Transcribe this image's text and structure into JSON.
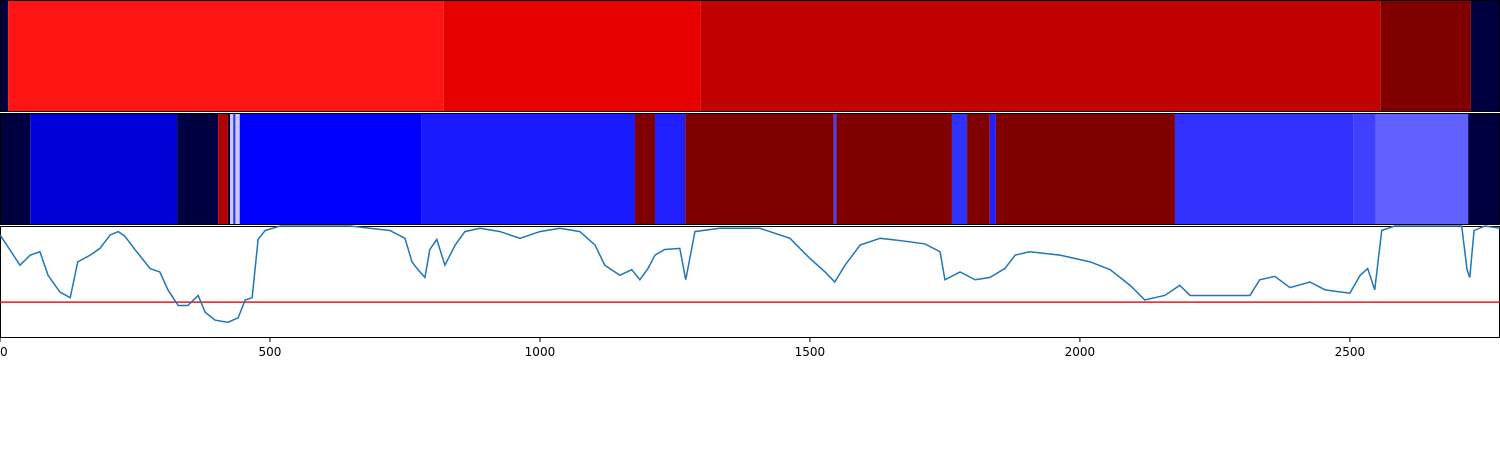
{
  "chart_data": [
    {
      "type": "segments",
      "xlim": [
        0,
        2778
      ],
      "segments": [
        {
          "start": 0,
          "end": 15,
          "color": "#000040"
        },
        {
          "start": 15,
          "end": 822,
          "color": "#ff1414"
        },
        {
          "start": 822,
          "end": 1298,
          "color": "#e60000"
        },
        {
          "start": 1298,
          "end": 2557,
          "color": "#c10000"
        },
        {
          "start": 2557,
          "end": 2724,
          "color": "#800000"
        },
        {
          "start": 2724,
          "end": 2778,
          "color": "#000040"
        }
      ]
    },
    {
      "type": "segments",
      "xlim": [
        0,
        2778
      ],
      "segments": [
        {
          "start": 0,
          "end": 56,
          "color": "#000040"
        },
        {
          "start": 56,
          "end": 328,
          "color": "#0000d8"
        },
        {
          "start": 328,
          "end": 404,
          "color": "#000040"
        },
        {
          "start": 404,
          "end": 422,
          "color": "#b00000"
        },
        {
          "start": 422,
          "end": 426,
          "color": "#000040"
        },
        {
          "start": 426,
          "end": 432,
          "color": "#c8c8ff"
        },
        {
          "start": 432,
          "end": 436,
          "color": "#3030ff"
        },
        {
          "start": 436,
          "end": 444,
          "color": "#c8c8ff"
        },
        {
          "start": 444,
          "end": 781,
          "color": "#0000ff"
        },
        {
          "start": 781,
          "end": 1176,
          "color": "#1a1aff"
        },
        {
          "start": 1176,
          "end": 1213,
          "color": "#800000"
        },
        {
          "start": 1213,
          "end": 1269,
          "color": "#2020ff"
        },
        {
          "start": 1269,
          "end": 1544,
          "color": "#800000"
        },
        {
          "start": 1544,
          "end": 1549,
          "color": "#4040ff"
        },
        {
          "start": 1549,
          "end": 1763,
          "color": "#800000"
        },
        {
          "start": 1763,
          "end": 1791,
          "color": "#3030ff"
        },
        {
          "start": 1791,
          "end": 1833,
          "color": "#800000"
        },
        {
          "start": 1833,
          "end": 1844,
          "color": "#2020ff"
        },
        {
          "start": 1844,
          "end": 2176,
          "color": "#800000"
        },
        {
          "start": 2176,
          "end": 2506,
          "color": "#3030ff"
        },
        {
          "start": 2506,
          "end": 2548,
          "color": "#4040ff"
        },
        {
          "start": 2548,
          "end": 2719,
          "color": "#6060ff"
        },
        {
          "start": 2719,
          "end": 2778,
          "color": "#000040"
        }
      ]
    },
    {
      "type": "line",
      "xlim": [
        0,
        2778
      ],
      "ylim": [
        0,
        100
      ],
      "xticks": [
        0,
        500,
        1000,
        1500,
        2000,
        2500
      ],
      "threshold": 32,
      "threshold_color": "#e41a1c",
      "x": [
        0,
        18,
        37,
        56,
        74,
        89,
        111,
        130,
        144,
        167,
        185,
        204,
        219,
        231,
        250,
        278,
        296,
        311,
        330,
        348,
        367,
        380,
        398,
        422,
        441,
        454,
        467,
        478,
        491,
        519,
        648,
        722,
        750,
        763,
        774,
        787,
        796,
        809,
        824,
        843,
        861,
        889,
        926,
        963,
        1000,
        1037,
        1074,
        1102,
        1120,
        1148,
        1170,
        1185,
        1200,
        1213,
        1231,
        1259,
        1270,
        1287,
        1333,
        1407,
        1463,
        1500,
        1528,
        1546,
        1565,
        1593,
        1630,
        1667,
        1713,
        1741,
        1750,
        1778,
        1806,
        1833,
        1861,
        1880,
        1907,
        1963,
        2019,
        2056,
        2093,
        2120,
        2157,
        2185,
        2204,
        2259,
        2315,
        2333,
        2361,
        2389,
        2426,
        2454,
        2500,
        2519,
        2533,
        2546,
        2559,
        2583,
        2707,
        2717,
        2722,
        2730,
        2750,
        2778
      ],
      "series": [
        {
          "color": "#1f77b4",
          "values": [
            92,
            79,
            65,
            74,
            77,
            56,
            41,
            36,
            68,
            74,
            80,
            92,
            95,
            91,
            79,
            62,
            59,
            43,
            29,
            29,
            38,
            23,
            16,
            14,
            18,
            34,
            36,
            88,
            96,
            100,
            100,
            96,
            89,
            68,
            61,
            54,
            79,
            88,
            65,
            83,
            95,
            98,
            95,
            89,
            95,
            98,
            95,
            83,
            65,
            56,
            61,
            52,
            62,
            74,
            79,
            80,
            52,
            95,
            98,
            98,
            89,
            71,
            59,
            50,
            65,
            83,
            89,
            87,
            84,
            77,
            52,
            59,
            52,
            54,
            62,
            74,
            77,
            74,
            68,
            61,
            47,
            34,
            38,
            47,
            38,
            38,
            38,
            52,
            55,
            45,
            50,
            43,
            40,
            56,
            62,
            43,
            96,
            100,
            100,
            61,
            54,
            96,
            100,
            98
          ]
        }
      ]
    }
  ]
}
